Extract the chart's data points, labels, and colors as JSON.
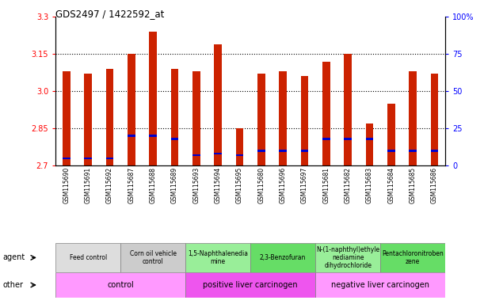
{
  "title": "GDS2497 / 1422592_at",
  "samples": [
    "GSM115690",
    "GSM115691",
    "GSM115692",
    "GSM115687",
    "GSM115688",
    "GSM115689",
    "GSM115693",
    "GSM115694",
    "GSM115695",
    "GSM115680",
    "GSM115696",
    "GSM115697",
    "GSM115681",
    "GSM115682",
    "GSM115683",
    "GSM115684",
    "GSM115685",
    "GSM115686"
  ],
  "transformed_count": [
    3.08,
    3.07,
    3.09,
    3.15,
    3.24,
    3.09,
    3.08,
    3.19,
    2.85,
    3.07,
    3.08,
    3.06,
    3.12,
    3.15,
    2.87,
    2.95,
    3.08,
    3.07
  ],
  "percentile_rank": [
    5,
    5,
    5,
    20,
    20,
    18,
    7,
    8,
    7,
    10,
    10,
    10,
    18,
    18,
    18,
    10,
    10,
    10
  ],
  "ymin": 2.7,
  "ymax": 3.3,
  "y_ticks": [
    2.7,
    2.85,
    3.0,
    3.15,
    3.3
  ],
  "y2_ticks": [
    0,
    25,
    50,
    75,
    100
  ],
  "dotted_lines": [
    2.85,
    3.0,
    3.15
  ],
  "bar_color": "#CC2200",
  "blue_color": "#0000CC",
  "agent_groups": [
    {
      "label": "Feed control",
      "start": 0,
      "end": 3,
      "color": "#DDDDDD"
    },
    {
      "label": "Corn oil vehicle\ncontrol",
      "start": 3,
      "end": 6,
      "color": "#CCCCCC"
    },
    {
      "label": "1,5-Naphthalenedia\nmine",
      "start": 6,
      "end": 9,
      "color": "#99EE99"
    },
    {
      "label": "2,3-Benzofuran",
      "start": 9,
      "end": 12,
      "color": "#66DD66"
    },
    {
      "label": "N-(1-naphthyl)ethyle\nnediamine\ndihydrochloride",
      "start": 12,
      "end": 15,
      "color": "#99EE99"
    },
    {
      "label": "Pentachloronitroben\nzene",
      "start": 15,
      "end": 18,
      "color": "#66DD66"
    }
  ],
  "other_groups": [
    {
      "label": "control",
      "start": 0,
      "end": 6,
      "color": "#FF99FF"
    },
    {
      "label": "positive liver carcinogen",
      "start": 6,
      "end": 12,
      "color": "#EE55EE"
    },
    {
      "label": "negative liver carcinogen",
      "start": 12,
      "end": 18,
      "color": "#FF99FF"
    }
  ]
}
